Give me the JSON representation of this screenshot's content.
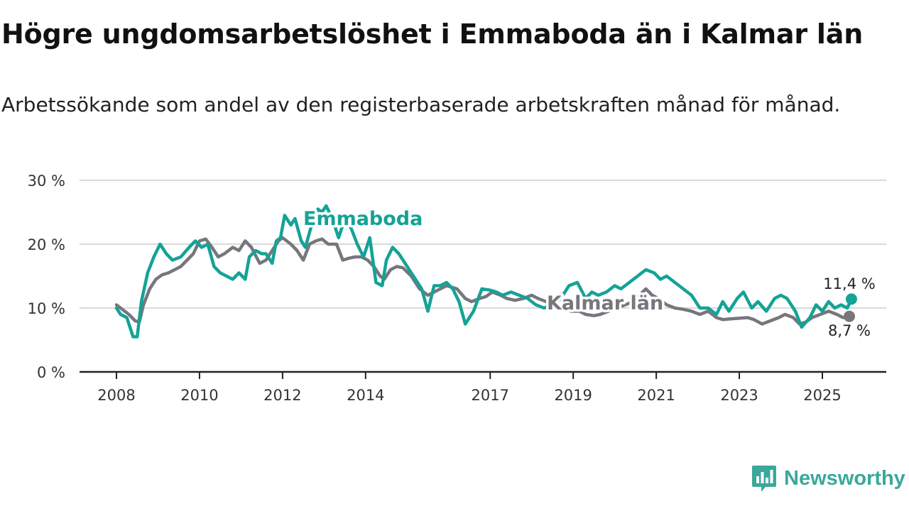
{
  "title": "Högre ungdomsarbetslöshet i Emmaboda än i Kalmar län",
  "subtitle": "Arbetssökande som andel av den registerbaserade arbetskraften månad för månad.",
  "brand": {
    "name": "Newsworthy",
    "logo_icon": "newsworthy-chart-bubble-icon"
  },
  "colors": {
    "emmaboda": "#14a396",
    "kalmar": "#77767c",
    "grid": "#d9d9d9",
    "axis": "#222222"
  },
  "chart_data": {
    "type": "line",
    "title": "Högre ungdomsarbetslöshet i Emmaboda än i Kalmar län",
    "ylim": [
      0,
      30
    ],
    "yticks": [
      0,
      10,
      20,
      30
    ],
    "ytick_labels": [
      "0 %",
      "10 %",
      "20 %",
      "30 %"
    ],
    "xlim": [
      2007.5,
      2026.3
    ],
    "xticks": [
      2008,
      2010,
      2012,
      2014,
      2017,
      2019,
      2021,
      2023,
      2025
    ],
    "xtick_labels": [
      "2008",
      "2010",
      "2012",
      "2014",
      "2017",
      "2019",
      "2021",
      "2023",
      "2025"
    ],
    "grid": true,
    "series": [
      {
        "name": "Kalmar län",
        "label": "Kalmar län",
        "color": "#77767c",
        "end_label": "8,7 %",
        "x": [
          2008.0,
          2008.1,
          2008.3,
          2008.45,
          2008.55,
          2008.65,
          2008.8,
          2008.95,
          2009.1,
          2009.25,
          2009.4,
          2009.55,
          2009.7,
          2009.85,
          2010.0,
          2010.15,
          2010.3,
          2010.45,
          2010.6,
          2010.8,
          2010.95,
          2011.1,
          2011.25,
          2011.45,
          2011.6,
          2011.75,
          2011.9,
          2012.0,
          2012.2,
          2012.35,
          2012.5,
          2012.65,
          2012.8,
          2012.95,
          2013.1,
          2013.3,
          2013.45,
          2013.6,
          2013.75,
          2013.9,
          2014.05,
          2014.2,
          2014.35,
          2014.45,
          2014.6,
          2014.75,
          2014.9,
          2015.1,
          2015.3,
          2015.5,
          2015.65,
          2015.8,
          2015.95,
          2016.2,
          2016.4,
          2016.55,
          2016.75,
          2016.9,
          2017.05,
          2017.25,
          2017.4,
          2017.6,
          2017.8,
          2018.0,
          2018.15,
          2018.35,
          2018.55,
          2018.75,
          2018.95,
          2019.15,
          2019.3,
          2019.5,
          2019.65,
          2019.85,
          2020.05,
          2020.25,
          2020.45,
          2020.6,
          2020.75,
          2020.9,
          2021.05,
          2021.25,
          2021.45,
          2021.65,
          2021.85,
          2022.05,
          2022.25,
          2022.45,
          2022.6,
          2022.8,
          2023.0,
          2023.2,
          2023.35,
          2023.55,
          2023.75,
          2023.95,
          2024.1,
          2024.3,
          2024.45,
          2024.6,
          2024.75,
          2024.95,
          2025.15,
          2025.35,
          2025.5,
          2025.65
        ],
        "y": [
          10.5,
          10.0,
          9.0,
          8.0,
          7.8,
          10.5,
          13.0,
          14.5,
          15.2,
          15.5,
          16.0,
          16.5,
          17.5,
          18.5,
          20.5,
          20.8,
          19.5,
          18.0,
          18.5,
          19.5,
          19.0,
          20.5,
          19.5,
          17.0,
          17.5,
          19.0,
          20.5,
          21.0,
          20.0,
          19.0,
          17.5,
          20.0,
          20.5,
          20.8,
          20.0,
          20.0,
          17.5,
          17.8,
          18.0,
          18.0,
          17.5,
          16.5,
          15.0,
          14.5,
          16.0,
          16.5,
          16.3,
          15.0,
          13.0,
          12.0,
          12.5,
          13.0,
          13.5,
          13.0,
          11.5,
          11.0,
          11.5,
          11.8,
          12.5,
          12.0,
          11.5,
          11.2,
          11.5,
          12.0,
          11.5,
          11.0,
          10.5,
          10.0,
          9.5,
          9.5,
          9.0,
          8.8,
          9.0,
          9.5,
          10.0,
          10.5,
          11.0,
          12.0,
          13.0,
          12.0,
          11.5,
          10.5,
          10.0,
          9.8,
          9.5,
          9.0,
          9.5,
          8.5,
          8.2,
          8.3,
          8.4,
          8.5,
          8.2,
          7.5,
          8.0,
          8.5,
          9.0,
          8.5,
          7.5,
          7.8,
          8.5,
          9.0,
          9.5,
          9.0,
          8.5,
          8.7
        ]
      },
      {
        "name": "Emmaboda",
        "label": "Emmaboda",
        "color": "#14a396",
        "end_label": "11,4 %",
        "x": [
          2008.0,
          2008.1,
          2008.25,
          2008.4,
          2008.5,
          2008.6,
          2008.75,
          2008.9,
          2009.05,
          2009.2,
          2009.35,
          2009.55,
          2009.75,
          2009.9,
          2010.05,
          2010.2,
          2010.35,
          2010.5,
          2010.65,
          2010.8,
          2010.95,
          2011.1,
          2011.2,
          2011.35,
          2011.5,
          2011.6,
          2011.75,
          2011.85,
          2011.95,
          2012.05,
          2012.2,
          2012.3,
          2012.45,
          2012.55,
          2012.7,
          2012.85,
          2012.95,
          2013.05,
          2013.2,
          2013.35,
          2013.5,
          2013.65,
          2013.8,
          2013.95,
          2014.1,
          2014.25,
          2014.4,
          2014.5,
          2014.65,
          2014.8,
          2014.95,
          2015.15,
          2015.35,
          2015.5,
          2015.65,
          2015.8,
          2015.95,
          2016.1,
          2016.25,
          2016.4,
          2016.6,
          2016.8,
          2017.0,
          2017.15,
          2017.3,
          2017.5,
          2017.7,
          2017.9,
          2018.1,
          2018.3,
          2018.5,
          2018.7,
          2018.9,
          2019.1,
          2019.3,
          2019.45,
          2019.6,
          2019.8,
          2020.0,
          2020.15,
          2020.35,
          2020.55,
          2020.75,
          2020.95,
          2021.1,
          2021.25,
          2021.45,
          2021.65,
          2021.85,
          2022.05,
          2022.25,
          2022.45,
          2022.6,
          2022.75,
          2022.95,
          2023.1,
          2023.3,
          2023.45,
          2023.65,
          2023.85,
          2024.0,
          2024.15,
          2024.35,
          2024.5,
          2024.7,
          2024.85,
          2025.0,
          2025.15,
          2025.3,
          2025.45,
          2025.6,
          2025.7
        ],
        "y": [
          10.0,
          9.0,
          8.5,
          5.5,
          5.5,
          11.0,
          15.5,
          18.0,
          20.0,
          18.5,
          17.5,
          18.0,
          19.5,
          20.5,
          19.5,
          20.0,
          16.5,
          15.5,
          15.0,
          14.5,
          15.5,
          14.5,
          18.0,
          19.0,
          18.5,
          18.5,
          17.0,
          20.5,
          21.0,
          24.5,
          23.0,
          24.0,
          20.5,
          19.5,
          23.0,
          25.5,
          25.0,
          26.0,
          24.0,
          21.0,
          24.0,
          22.5,
          20.0,
          18.0,
          21.0,
          14.0,
          13.5,
          17.5,
          19.5,
          18.5,
          17.0,
          15.0,
          13.0,
          9.5,
          13.5,
          13.5,
          14.0,
          13.0,
          11.0,
          7.5,
          9.5,
          13.0,
          12.8,
          12.5,
          12.0,
          12.5,
          12.0,
          11.5,
          10.5,
          10.0,
          10.5,
          11.5,
          13.5,
          14.0,
          11.5,
          12.5,
          12.0,
          12.5,
          13.5,
          13.0,
          14.0,
          15.0,
          16.0,
          15.5,
          14.5,
          15.0,
          14.0,
          13.0,
          12.0,
          10.0,
          10.0,
          9.0,
          11.0,
          9.5,
          11.5,
          12.5,
          10.0,
          11.0,
          9.5,
          11.5,
          12.0,
          11.5,
          9.5,
          7.0,
          8.5,
          10.5,
          9.5,
          11.0,
          10.0,
          10.5,
          10.0,
          11.4
        ]
      }
    ]
  }
}
